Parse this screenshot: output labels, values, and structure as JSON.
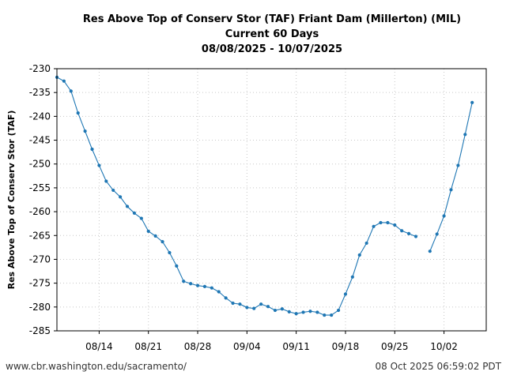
{
  "chart_data": {
    "type": "line",
    "title": [
      "Res Above Top of Conserv Stor (TAF) Friant Dam (Millerton) (MIL)",
      "Current 60 Days",
      "08/08/2025 - 10/07/2025"
    ],
    "xlabel": "",
    "ylabel": "Res Above Top of Conserv Stor (TAF)",
    "xlim": [
      "2025-08-08",
      "2025-10-08"
    ],
    "ylim": [
      -285,
      -230
    ],
    "x_ticks": [
      {
        "date": "2025-08-14",
        "label": "08/14"
      },
      {
        "date": "2025-08-21",
        "label": "08/21"
      },
      {
        "date": "2025-08-28",
        "label": "08/28"
      },
      {
        "date": "2025-09-04",
        "label": "09/04"
      },
      {
        "date": "2025-09-11",
        "label": "09/11"
      },
      {
        "date": "2025-09-18",
        "label": "09/18"
      },
      {
        "date": "2025-09-25",
        "label": "09/25"
      },
      {
        "date": "2025-10-02",
        "label": "10/02"
      }
    ],
    "y_ticks": [
      -230,
      -235,
      -240,
      -245,
      -250,
      -255,
      -260,
      -265,
      -270,
      -275,
      -280,
      -285
    ],
    "grid": true,
    "color": "#1f77b4",
    "series": [
      {
        "points": [
          [
            "2025-08-08",
            -231.8
          ],
          [
            "2025-08-09",
            -232.6
          ],
          [
            "2025-08-10",
            -234.7
          ],
          [
            "2025-08-11",
            -239.3
          ],
          [
            "2025-08-12",
            -243.1
          ],
          [
            "2025-08-13",
            -246.9
          ],
          [
            "2025-08-14",
            -250.3
          ],
          [
            "2025-08-15",
            -253.6
          ],
          [
            "2025-08-16",
            -255.5
          ],
          [
            "2025-08-17",
            -256.9
          ],
          [
            "2025-08-18",
            -258.9
          ],
          [
            "2025-08-19",
            -260.3
          ],
          [
            "2025-08-20",
            -261.4
          ],
          [
            "2025-08-21",
            -264.1
          ],
          [
            "2025-08-22",
            -265.1
          ],
          [
            "2025-08-23",
            -266.3
          ],
          [
            "2025-08-24",
            -268.6
          ],
          [
            "2025-08-25",
            -271.4
          ],
          [
            "2025-08-26",
            -274.6
          ],
          [
            "2025-08-27",
            -275.1
          ],
          [
            "2025-08-28",
            -275.5
          ],
          [
            "2025-08-29",
            -275.7
          ],
          [
            "2025-08-30",
            -276.0
          ],
          [
            "2025-08-31",
            -276.8
          ],
          [
            "2025-09-01",
            -278.1
          ],
          [
            "2025-09-02",
            -279.2
          ],
          [
            "2025-09-03",
            -279.4
          ],
          [
            "2025-09-04",
            -280.1
          ],
          [
            "2025-09-05",
            -280.3
          ],
          [
            "2025-09-06",
            -279.4
          ],
          [
            "2025-09-07",
            -279.9
          ],
          [
            "2025-09-08",
            -280.7
          ],
          [
            "2025-09-09",
            -280.4
          ],
          [
            "2025-09-10",
            -281.0
          ],
          [
            "2025-09-11",
            -281.4
          ],
          [
            "2025-09-12",
            -281.1
          ],
          [
            "2025-09-13",
            -280.9
          ],
          [
            "2025-09-14",
            -281.1
          ],
          [
            "2025-09-15",
            -281.7
          ],
          [
            "2025-09-16",
            -281.7
          ],
          [
            "2025-09-17",
            -280.7
          ],
          [
            "2025-09-18",
            -277.3
          ],
          [
            "2025-09-19",
            -273.7
          ],
          [
            "2025-09-20",
            -269.1
          ],
          [
            "2025-09-21",
            -266.6
          ],
          [
            "2025-09-22",
            -263.1
          ],
          [
            "2025-09-23",
            -262.3
          ],
          [
            "2025-09-24",
            -262.3
          ],
          [
            "2025-09-25",
            -262.8
          ],
          [
            "2025-09-26",
            -264.0
          ],
          [
            "2025-09-27",
            -264.6
          ],
          [
            "2025-09-28",
            -265.2
          ]
        ]
      },
      {
        "points": [
          [
            "2025-09-30",
            -268.3
          ],
          [
            "2025-10-01",
            -264.7
          ],
          [
            "2025-10-02",
            -260.9
          ],
          [
            "2025-10-03",
            -255.4
          ],
          [
            "2025-10-04",
            -250.3
          ],
          [
            "2025-10-05",
            -243.8
          ],
          [
            "2025-10-06",
            -237.1
          ]
        ]
      }
    ]
  },
  "footer": {
    "source": "www.cbr.washington.edu/sacramento/",
    "timestamp": "08 Oct 2025 06:59:02 PDT"
  }
}
